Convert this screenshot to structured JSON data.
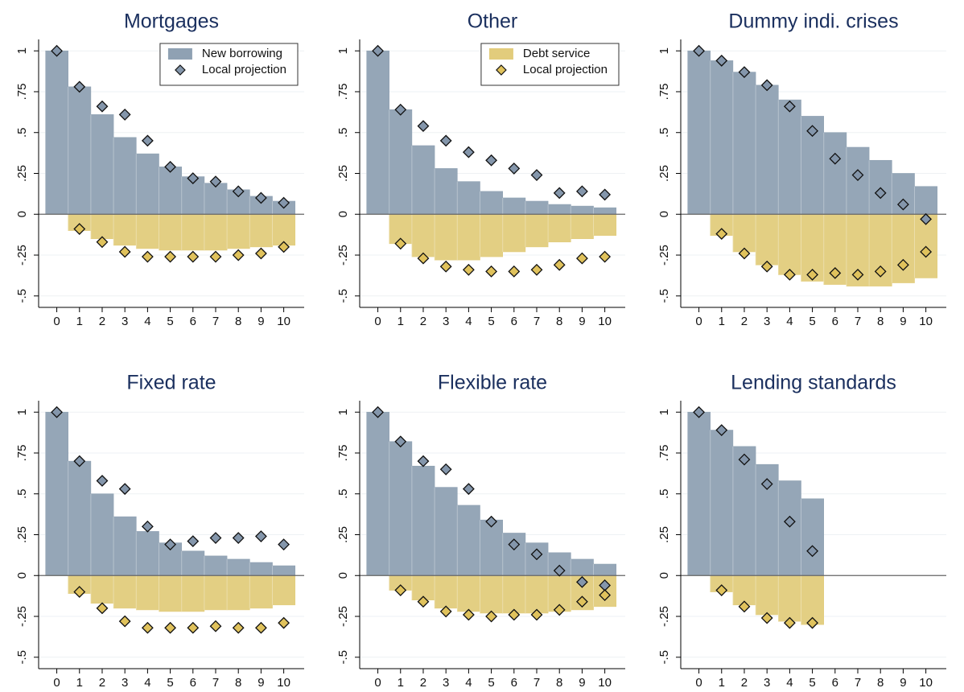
{
  "chart_data": [
    {
      "type": "bar",
      "title": "Mortgages",
      "legend": "top right",
      "x": [
        0,
        1,
        2,
        3,
        4,
        5,
        6,
        7,
        8,
        9,
        10
      ],
      "series": [
        {
          "name": "New borrowing",
          "kind": "bar",
          "color": "#8fa1b3",
          "values": [
            1,
            0.78,
            0.61,
            0.47,
            0.37,
            0.29,
            0.23,
            0.19,
            0.15,
            0.11,
            0.08
          ]
        },
        {
          "kind": "bar",
          "color": "#e2cc7c",
          "values": [
            null,
            -0.1,
            -0.15,
            -0.19,
            -0.21,
            -0.22,
            -0.22,
            -0.22,
            -0.21,
            -0.2,
            -0.19
          ]
        },
        {
          "name": "Local projection",
          "kind": "scatter",
          "color": "#8496ab",
          "values": [
            1,
            0.78,
            0.66,
            0.61,
            0.45,
            0.29,
            0.22,
            0.2,
            0.14,
            0.1,
            0.07
          ]
        },
        {
          "kind": "scatter",
          "color": "#e0c25c",
          "values": [
            null,
            -0.09,
            -0.17,
            -0.23,
            -0.26,
            -0.26,
            -0.26,
            -0.26,
            -0.25,
            -0.24,
            -0.2
          ]
        }
      ],
      "xlim": [
        -0.8,
        10.9
      ],
      "ylim": [
        -0.57,
        1.07
      ],
      "xticks": [
        0,
        1,
        2,
        3,
        4,
        5,
        6,
        7,
        8,
        9,
        10
      ],
      "yticks": [
        1,
        {
          "value": 0.75,
          "label": ".75"
        },
        {
          "value": 0.5,
          "label": ".5"
        },
        {
          "value": 0.25,
          "label": ".25"
        },
        0,
        {
          "value": -0.25,
          "label": "-.25"
        },
        {
          "value": -0.5,
          "label": "-.5"
        }
      ]
    },
    {
      "type": "bar",
      "title": "Other",
      "legend": "top right",
      "x": [
        0,
        1,
        2,
        3,
        4,
        5,
        6,
        7,
        8,
        9,
        10
      ],
      "series": [
        {
          "kind": "bar",
          "color": "#8fa1b3",
          "values": [
            1,
            0.64,
            0.42,
            0.28,
            0.2,
            0.14,
            0.1,
            0.08,
            0.06,
            0.05,
            0.04
          ]
        },
        {
          "name": "Debt service",
          "kind": "bar",
          "color": "#e2cc7c",
          "values": [
            null,
            -0.18,
            -0.26,
            -0.28,
            -0.28,
            -0.26,
            -0.23,
            -0.2,
            -0.17,
            -0.15,
            -0.13
          ]
        },
        {
          "kind": "scatter",
          "color": "#8496ab",
          "values": [
            1,
            0.64,
            0.54,
            0.45,
            0.38,
            0.33,
            0.28,
            0.24,
            0.13,
            0.14,
            0.12
          ]
        },
        {
          "name": "Local projection",
          "kind": "scatter",
          "color": "#e0c25c",
          "values": [
            null,
            -0.18,
            -0.27,
            -0.32,
            -0.34,
            -0.35,
            -0.35,
            -0.34,
            -0.31,
            -0.27,
            -0.26
          ]
        }
      ],
      "xlim": [
        -0.8,
        10.9
      ],
      "ylim": [
        -0.57,
        1.07
      ],
      "xticks": [
        0,
        1,
        2,
        3,
        4,
        5,
        6,
        7,
        8,
        9,
        10
      ],
      "yticks": [
        1,
        {
          "value": 0.75,
          "label": ".75"
        },
        {
          "value": 0.5,
          "label": ".5"
        },
        {
          "value": 0.25,
          "label": ".25"
        },
        0,
        {
          "value": -0.25,
          "label": "-.25"
        },
        {
          "value": -0.5,
          "label": "-.5"
        }
      ]
    },
    {
      "type": "bar",
      "title": "Dummy indi. crises",
      "x": [
        0,
        1,
        2,
        3,
        4,
        5,
        6,
        7,
        8,
        9,
        10
      ],
      "series": [
        {
          "kind": "bar",
          "color": "#8fa1b3",
          "values": [
            1,
            0.94,
            0.87,
            0.79,
            0.7,
            0.6,
            0.5,
            0.41,
            0.33,
            0.25,
            0.17
          ]
        },
        {
          "kind": "bar",
          "color": "#e2cc7c",
          "values": [
            null,
            -0.13,
            -0.23,
            -0.31,
            -0.37,
            -0.41,
            -0.43,
            -0.44,
            -0.44,
            -0.42,
            -0.39
          ]
        },
        {
          "kind": "scatter",
          "color": "#8496ab",
          "values": [
            1,
            0.94,
            0.87,
            0.79,
            0.66,
            0.51,
            0.34,
            0.24,
            0.13,
            0.06,
            -0.03
          ]
        },
        {
          "kind": "scatter",
          "color": "#e0c25c",
          "values": [
            null,
            -0.12,
            -0.24,
            -0.32,
            -0.37,
            -0.37,
            -0.36,
            -0.37,
            -0.35,
            -0.31,
            -0.23
          ]
        }
      ],
      "xlim": [
        -0.8,
        10.9
      ],
      "ylim": [
        -0.57,
        1.07
      ],
      "xticks": [
        0,
        1,
        2,
        3,
        4,
        5,
        6,
        7,
        8,
        9,
        10
      ],
      "yticks": [
        1,
        {
          "value": 0.75,
          "label": ".75"
        },
        {
          "value": 0.5,
          "label": ".5"
        },
        {
          "value": 0.25,
          "label": ".25"
        },
        0,
        {
          "value": -0.25,
          "label": "-.25"
        },
        {
          "value": -0.5,
          "label": "-.5"
        }
      ]
    },
    {
      "type": "bar",
      "title": "Fixed rate",
      "x": [
        0,
        1,
        2,
        3,
        4,
        5,
        6,
        7,
        8,
        9,
        10
      ],
      "series": [
        {
          "kind": "bar",
          "color": "#8fa1b3",
          "values": [
            1,
            0.7,
            0.5,
            0.36,
            0.27,
            0.2,
            0.15,
            0.12,
            0.1,
            0.08,
            0.06
          ]
        },
        {
          "kind": "bar",
          "color": "#e2cc7c",
          "values": [
            null,
            -0.11,
            -0.17,
            -0.2,
            -0.21,
            -0.22,
            -0.22,
            -0.21,
            -0.21,
            -0.2,
            -0.18
          ]
        },
        {
          "kind": "scatter",
          "color": "#8496ab",
          "values": [
            1,
            0.7,
            0.58,
            0.53,
            0.3,
            0.19,
            0.21,
            0.23,
            0.23,
            0.24,
            0.19
          ]
        },
        {
          "kind": "scatter",
          "color": "#e0c25c",
          "values": [
            null,
            -0.1,
            -0.2,
            -0.28,
            -0.32,
            -0.32,
            -0.32,
            -0.31,
            -0.32,
            -0.32,
            -0.29
          ]
        }
      ],
      "xlim": [
        -0.8,
        10.9
      ],
      "ylim": [
        -0.57,
        1.07
      ],
      "xticks": [
        0,
        1,
        2,
        3,
        4,
        5,
        6,
        7,
        8,
        9,
        10
      ],
      "yticks": [
        1,
        {
          "value": 0.75,
          "label": ".75"
        },
        {
          "value": 0.5,
          "label": ".5"
        },
        {
          "value": 0.25,
          "label": ".25"
        },
        0,
        {
          "value": -0.25,
          "label": "-.25"
        },
        {
          "value": -0.5,
          "label": "-.5"
        }
      ]
    },
    {
      "type": "bar",
      "title": "Flexible rate",
      "x": [
        0,
        1,
        2,
        3,
        4,
        5,
        6,
        7,
        8,
        9,
        10
      ],
      "series": [
        {
          "kind": "bar",
          "color": "#8fa1b3",
          "values": [
            1,
            0.82,
            0.67,
            0.54,
            0.43,
            0.34,
            0.26,
            0.2,
            0.14,
            0.1,
            0.07
          ]
        },
        {
          "kind": "bar",
          "color": "#e2cc7c",
          "values": [
            null,
            -0.09,
            -0.15,
            -0.2,
            -0.22,
            -0.23,
            -0.23,
            -0.23,
            -0.22,
            -0.21,
            -0.19
          ]
        },
        {
          "kind": "scatter",
          "color": "#8496ab",
          "values": [
            1,
            0.82,
            0.7,
            0.65,
            0.53,
            0.33,
            0.19,
            0.13,
            0.03,
            -0.04,
            -0.06
          ]
        },
        {
          "kind": "scatter",
          "color": "#e0c25c",
          "values": [
            null,
            -0.09,
            -0.16,
            -0.22,
            -0.24,
            -0.25,
            -0.24,
            -0.24,
            -0.21,
            -0.16,
            -0.12
          ]
        }
      ],
      "xlim": [
        -0.8,
        10.9
      ],
      "ylim": [
        -0.57,
        1.07
      ],
      "xticks": [
        0,
        1,
        2,
        3,
        4,
        5,
        6,
        7,
        8,
        9,
        10
      ],
      "yticks": [
        1,
        {
          "value": 0.75,
          "label": ".75"
        },
        {
          "value": 0.5,
          "label": ".5"
        },
        {
          "value": 0.25,
          "label": ".25"
        },
        0,
        {
          "value": -0.25,
          "label": "-.25"
        },
        {
          "value": -0.5,
          "label": "-.5"
        }
      ]
    },
    {
      "type": "bar",
      "title": "Lending standards",
      "x": [
        0,
        1,
        2,
        3,
        4,
        5,
        6,
        7,
        8,
        9,
        10
      ],
      "series": [
        {
          "kind": "bar",
          "color": "#8fa1b3",
          "values": [
            1,
            0.89,
            0.79,
            0.68,
            0.58,
            0.47,
            null,
            null,
            null,
            null,
            null
          ]
        },
        {
          "kind": "bar",
          "color": "#e2cc7c",
          "values": [
            null,
            -0.1,
            -0.18,
            -0.24,
            -0.28,
            -0.3,
            null,
            null,
            null,
            null,
            null
          ]
        },
        {
          "kind": "scatter",
          "color": "#8496ab",
          "values": [
            1,
            0.89,
            0.71,
            0.56,
            0.33,
            0.15,
            null,
            null,
            null,
            null,
            null
          ]
        },
        {
          "kind": "scatter",
          "color": "#e0c25c",
          "values": [
            null,
            -0.09,
            -0.19,
            -0.26,
            -0.29,
            -0.29,
            null,
            null,
            null,
            null,
            null
          ]
        }
      ],
      "xlim": [
        -0.8,
        10.9
      ],
      "ylim": [
        -0.57,
        1.07
      ],
      "xticks": [
        0,
        1,
        2,
        3,
        4,
        5,
        6,
        7,
        8,
        9,
        10
      ],
      "yticks": [
        1,
        {
          "value": 0.75,
          "label": ".75"
        },
        {
          "value": 0.5,
          "label": ".5"
        },
        {
          "value": 0.25,
          "label": ".25"
        },
        0,
        {
          "value": -0.25,
          "label": "-.25"
        },
        {
          "value": -0.5,
          "label": "-.5"
        }
      ]
    }
  ]
}
